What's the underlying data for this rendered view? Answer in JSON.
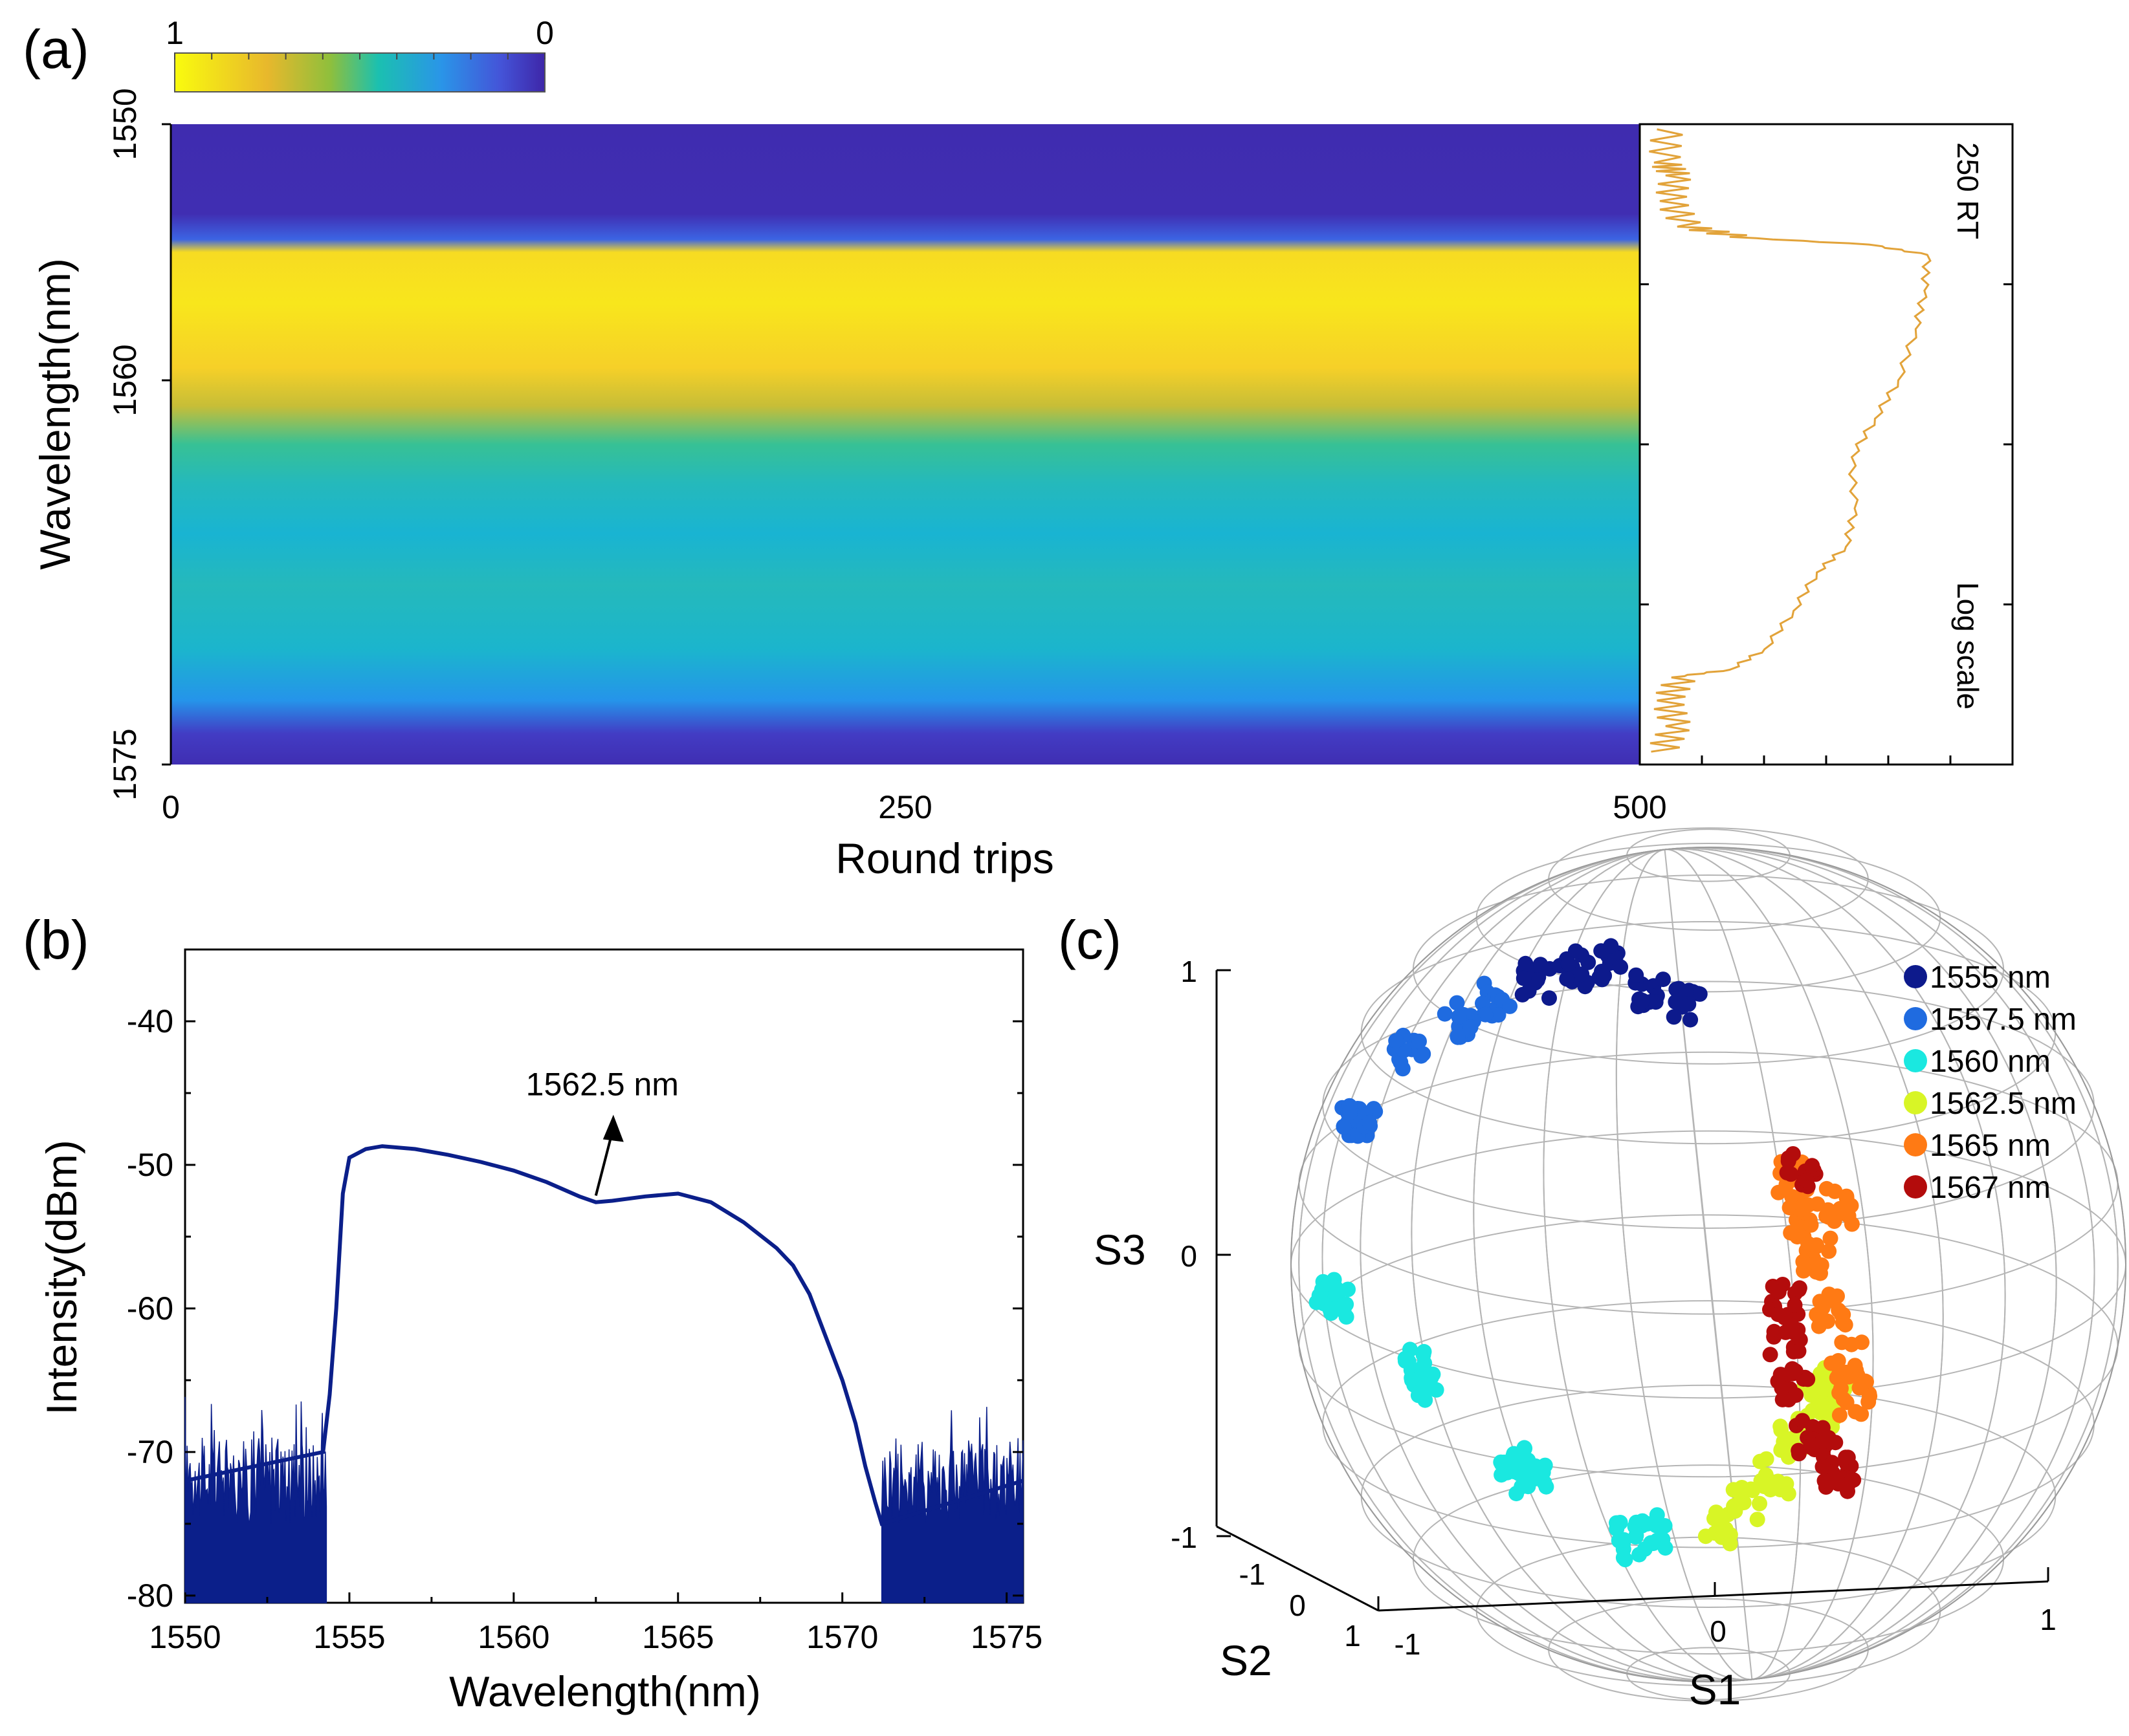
{
  "chart_data": [
    {
      "id": "a",
      "panel_label": "(a)",
      "type": "heatmap",
      "title": "",
      "xlabel": "Round trips",
      "ylabel": "Wavelength(nm)",
      "xlim": [
        0,
        500
      ],
      "ylim": [
        1575,
        1550
      ],
      "x_ticks": [
        "0",
        "250",
        "500"
      ],
      "y_ticks": [
        "1550",
        "1560",
        "1575"
      ],
      "colorbar": {
        "max_label": "1",
        "min_label": "0"
      },
      "intensity_profile_by_wavelength": [
        {
          "w": 1550.0,
          "v": 0.02
        },
        {
          "w": 1553.5,
          "v": 0.03
        },
        {
          "w": 1554.5,
          "v": 0.2
        },
        {
          "w": 1555.0,
          "v": 0.93
        },
        {
          "w": 1557.0,
          "v": 0.96
        },
        {
          "w": 1559.5,
          "v": 0.9
        },
        {
          "w": 1561.0,
          "v": 0.78
        },
        {
          "w": 1562.5,
          "v": 0.58
        },
        {
          "w": 1564.0,
          "v": 0.5
        },
        {
          "w": 1566.0,
          "v": 0.45
        },
        {
          "w": 1568.0,
          "v": 0.5
        },
        {
          "w": 1570.5,
          "v": 0.46
        },
        {
          "w": 1572.5,
          "v": 0.33
        },
        {
          "w": 1573.8,
          "v": 0.08
        },
        {
          "w": 1575.0,
          "v": 0.03
        }
      ],
      "inset": {
        "label_top": "250 RT",
        "label_bottom": "Log scale",
        "spectrum": [
          {
            "w": 1550.2,
            "v": 0.05
          },
          {
            "w": 1551.5,
            "v": 0.04
          },
          {
            "w": 1552.0,
            "v": 0.08
          },
          {
            "w": 1553.0,
            "v": 0.06
          },
          {
            "w": 1554.0,
            "v": 0.12
          },
          {
            "w": 1554.4,
            "v": 0.3
          },
          {
            "w": 1554.7,
            "v": 0.78
          },
          {
            "w": 1555.1,
            "v": 0.98
          },
          {
            "w": 1556.5,
            "v": 0.97
          },
          {
            "w": 1558.0,
            "v": 0.94
          },
          {
            "w": 1560.0,
            "v": 0.88
          },
          {
            "w": 1561.5,
            "v": 0.8
          },
          {
            "w": 1563.0,
            "v": 0.72
          },
          {
            "w": 1565.0,
            "v": 0.73
          },
          {
            "w": 1566.5,
            "v": 0.7
          },
          {
            "w": 1567.5,
            "v": 0.6
          },
          {
            "w": 1569.0,
            "v": 0.52
          },
          {
            "w": 1570.5,
            "v": 0.42
          },
          {
            "w": 1571.3,
            "v": 0.3
          },
          {
            "w": 1571.6,
            "v": 0.1
          },
          {
            "w": 1572.5,
            "v": 0.05
          },
          {
            "w": 1573.5,
            "v": 0.08
          },
          {
            "w": 1574.5,
            "v": 0.03
          }
        ]
      }
    },
    {
      "id": "b",
      "panel_label": "(b)",
      "type": "line",
      "title": "",
      "xlabel": "Wavelength(nm)",
      "ylabel": "Intensity(dBm)",
      "xlim": [
        1550,
        1575.5
      ],
      "ylim": [
        -80.5,
        -35
      ],
      "x_ticks": [
        1550,
        1555,
        1560,
        1565,
        1570,
        1575
      ],
      "y_ticks": [
        -40,
        -50,
        -60,
        -70,
        -80
      ],
      "annotation": {
        "text": "1562.5 nm",
        "x": 1562.5,
        "y": -52.5
      },
      "series": [
        {
          "name": "spectrum",
          "color": "#0b1f8a",
          "x": [
            1550.0,
            1554.2,
            1554.4,
            1554.6,
            1554.8,
            1555.0,
            1555.5,
            1556.0,
            1557.0,
            1558.0,
            1559.0,
            1560.0,
            1561.0,
            1562.0,
            1562.5,
            1563.0,
            1564.0,
            1565.0,
            1566.0,
            1567.0,
            1568.0,
            1568.5,
            1569.0,
            1569.5,
            1570.0,
            1570.4,
            1570.7,
            1571.0,
            1571.2,
            1575.5
          ],
          "y": [
            -72.0,
            -70.0,
            -66.0,
            -60.0,
            -52.0,
            -49.5,
            -48.9,
            -48.7,
            -48.9,
            -49.3,
            -49.8,
            -50.4,
            -51.2,
            -52.2,
            -52.6,
            -52.5,
            -52.2,
            -52.0,
            -52.6,
            -54.0,
            -55.8,
            -57.0,
            -59.0,
            -62.0,
            -65.0,
            -68.0,
            -71.0,
            -73.5,
            -75.0,
            -72.0
          ]
        }
      ],
      "noise_floor": {
        "range_left": [
          1550.0,
          1554.3
        ],
        "range_right": [
          1571.2,
          1575.5
        ],
        "level": -72.0
      }
    },
    {
      "id": "c",
      "panel_label": "(c)",
      "type": "scatter",
      "title": "",
      "xlabel": "S1",
      "ylabel": "S2",
      "zlabel": "S3",
      "axis_ticks": {
        "s1": [
          "-1",
          "0",
          "1"
        ],
        "s2": [
          "-1",
          "0",
          "1"
        ],
        "s3": [
          "1",
          "0",
          "-1"
        ]
      },
      "legend_position": "top-right",
      "series": [
        {
          "name": "1555 nm",
          "color": "#0d1a8c",
          "points": [
            [
              -0.45,
              0.5,
              0.74
            ],
            [
              -0.25,
              0.5,
              0.79
            ],
            [
              -0.35,
              0.5,
              0.77
            ],
            [
              -0.15,
              0.5,
              0.72
            ],
            [
              -0.05,
              0.5,
              0.67
            ]
          ]
        },
        {
          "name": "1557.5 nm",
          "color": "#1f6be0",
          "points": [
            [
              -0.55,
              0.5,
              0.69
            ],
            [
              -0.65,
              0.5,
              0.64
            ],
            [
              -0.78,
              0.5,
              0.55
            ],
            [
              -0.9,
              0.5,
              0.36
            ],
            [
              -0.92,
              0.5,
              0.38
            ]
          ]
        },
        {
          "name": "1560 nm",
          "color": "#1ae8e0",
          "points": [
            [
              -0.97,
              0.5,
              -0.08
            ],
            [
              -0.98,
              0.5,
              -0.1
            ],
            [
              -0.75,
              0.5,
              -0.27
            ],
            [
              -0.74,
              0.5,
              -0.31
            ],
            [
              -0.5,
              0.5,
              -0.52
            ],
            [
              -0.46,
              0.5,
              -0.55
            ],
            [
              -0.2,
              0.5,
              -0.72
            ],
            [
              -0.15,
              0.5,
              -0.7
            ]
          ]
        },
        {
          "name": "1562.5 nm",
          "color": "#d8f526",
          "points": [
            [
              0.03,
              0.5,
              -0.68
            ],
            [
              0.1,
              0.5,
              -0.62
            ],
            [
              0.17,
              0.5,
              -0.55
            ],
            [
              0.22,
              0.5,
              -0.45
            ],
            [
              0.28,
              0.5,
              -0.35
            ],
            [
              0.33,
              0.5,
              -0.3
            ],
            [
              0.3,
              0.5,
              -0.4
            ]
          ]
        },
        {
          "name": "1565 nm",
          "color": "#ff7a14",
          "points": [
            [
              0.22,
              0.5,
              0.22
            ],
            [
              0.25,
              0.5,
              0.12
            ],
            [
              0.28,
              0.5,
              0.02
            ],
            [
              0.32,
              0.5,
              -0.12
            ],
            [
              0.36,
              0.5,
              -0.25
            ],
            [
              0.38,
              0.5,
              -0.35
            ],
            [
              0.34,
              0.5,
              0.15
            ]
          ]
        },
        {
          "name": "1567 nm",
          "color": "#b30c0c",
          "points": [
            [
              0.2,
              0.5,
              -0.1
            ],
            [
              0.2,
              0.5,
              -0.2
            ],
            [
              0.22,
              0.5,
              -0.32
            ],
            [
              0.26,
              0.5,
              -0.45
            ],
            [
              0.3,
              0.5,
              -0.5
            ],
            [
              0.34,
              0.5,
              -0.55
            ],
            [
              0.24,
              0.5,
              0.25
            ]
          ]
        }
      ]
    }
  ]
}
